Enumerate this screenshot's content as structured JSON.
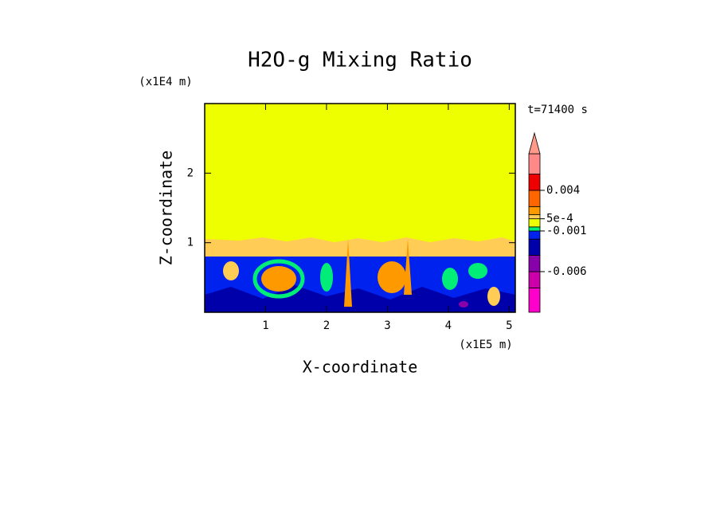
{
  "chart_data": {
    "type": "contour",
    "title": "H2O-g Mixing Ratio",
    "x_label": "X-coordinate",
    "y_label": "Z-coordinate",
    "x_unit": "(x1E5 m)",
    "y_unit": "(x1E4 m)",
    "annotation": "t=71400 s",
    "xlim": [
      0,
      5.1
    ],
    "ylim": [
      0,
      3
    ],
    "xticks": [
      1,
      2,
      3,
      4,
      5
    ],
    "yticks": [
      1,
      2
    ],
    "colorbar": {
      "lim": [
        -0.011,
        0.0085
      ],
      "levels": [
        -0.011,
        -0.008,
        -0.006,
        -0.004,
        -0.002,
        -0.001,
        -0.0005,
        0.0005,
        0.001,
        0.002,
        0.004,
        0.006,
        0.0085
      ],
      "colors": [
        "#ff00cc",
        "#cc00aa",
        "#8800aa",
        "#0000aa",
        "#0022ee",
        "#00ee77",
        "#eeff00",
        "#ffcc55",
        "#ff9900",
        "#ff6600",
        "#ee0000",
        "#ff8888"
      ],
      "extend_color": "#ff9a8a",
      "ticks": [
        -0.006,
        -0.001,
        {
          "value": 0.0005,
          "label": "5e-4"
        },
        0.004
      ]
    }
  }
}
